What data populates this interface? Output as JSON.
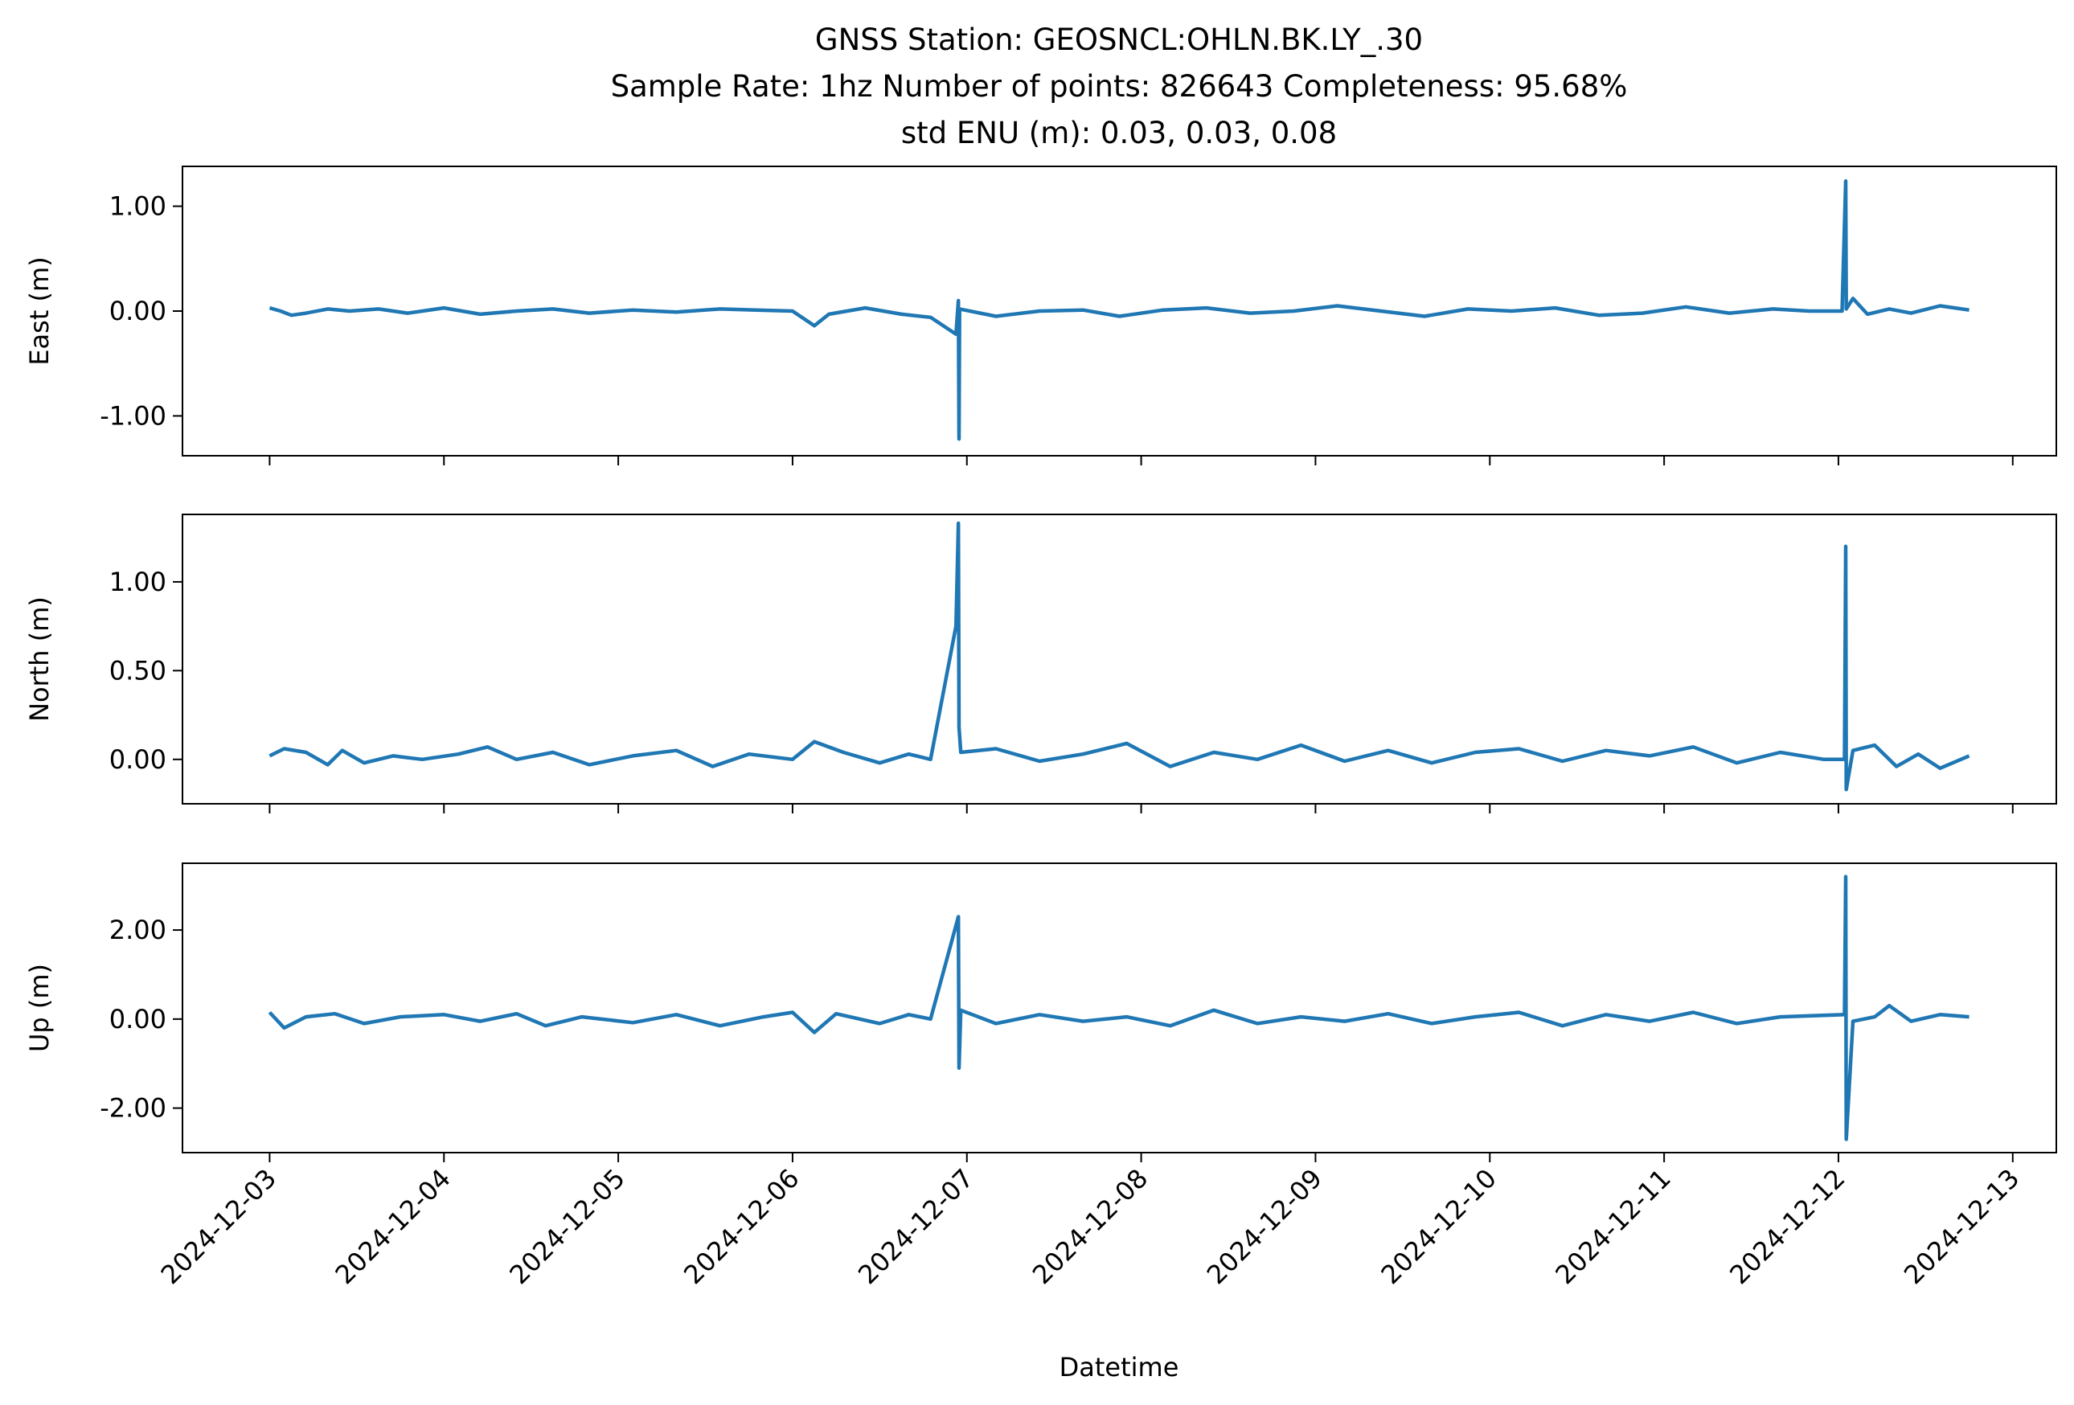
{
  "title_lines": [
    "GNSS Station: GEOSNCL:OHLN.BK.LY_.30",
    "Sample Rate: 1hz   Number of points: 826643    Completeness:  95.68%",
    "std ENU (m):  0.03, 0.03, 0.08"
  ],
  "colors": {
    "series": "#1f77b4",
    "axes": "#000000",
    "background": "#ffffff"
  },
  "chart_data": {
    "type": "line",
    "xlabel": "Datetime",
    "x_ticks": [
      "2024-12-03",
      "2024-12-04",
      "2024-12-05",
      "2024-12-06",
      "2024-12-07",
      "2024-12-08",
      "2024-12-09",
      "2024-12-10",
      "2024-12-11",
      "2024-12-12",
      "2024-12-13"
    ],
    "xlim": [
      "2024-12-02T12:00",
      "2024-12-13T06:00"
    ],
    "grid": false,
    "legend": "none",
    "panels": [
      {
        "ylabel": "East (m)",
        "ylim": [
          -1.38,
          1.38
        ],
        "yticks": [
          -1.0,
          0.0,
          1.0
        ],
        "ytick_labels": [
          "-1.00",
          "0.00",
          "1.00"
        ],
        "points": [
          [
            "2024-12-03T00:00",
            0.03
          ],
          [
            "2024-12-03T01:30",
            0.0
          ],
          [
            "2024-12-03T03:00",
            -0.04
          ],
          [
            "2024-12-03T05:00",
            -0.02
          ],
          [
            "2024-12-03T08:00",
            0.02
          ],
          [
            "2024-12-03T11:00",
            0.0
          ],
          [
            "2024-12-03T15:00",
            0.02
          ],
          [
            "2024-12-03T19:00",
            -0.02
          ],
          [
            "2024-12-04T00:00",
            0.03
          ],
          [
            "2024-12-04T05:00",
            -0.03
          ],
          [
            "2024-12-04T10:00",
            0.0
          ],
          [
            "2024-12-04T15:00",
            0.02
          ],
          [
            "2024-12-04T20:00",
            -0.02
          ],
          [
            "2024-12-05T02:00",
            0.01
          ],
          [
            "2024-12-05T08:00",
            -0.01
          ],
          [
            "2024-12-05T14:00",
            0.02
          ],
          [
            "2024-12-05T19:00",
            0.01
          ],
          [
            "2024-12-06T00:00",
            0.0
          ],
          [
            "2024-12-06T03:00",
            -0.14
          ],
          [
            "2024-12-06T05:00",
            -0.03
          ],
          [
            "2024-12-06T10:00",
            0.03
          ],
          [
            "2024-12-06T15:00",
            -0.03
          ],
          [
            "2024-12-06T19:00",
            -0.06
          ],
          [
            "2024-12-06T22:30",
            -0.22
          ],
          [
            "2024-12-06T22:50",
            0.1
          ],
          [
            "2024-12-06T22:55",
            -1.22
          ],
          [
            "2024-12-06T23:00",
            0.02
          ],
          [
            "2024-12-07T04:00",
            -0.05
          ],
          [
            "2024-12-07T10:00",
            0.0
          ],
          [
            "2024-12-07T16:00",
            0.01
          ],
          [
            "2024-12-07T21:00",
            -0.05
          ],
          [
            "2024-12-08T03:00",
            0.01
          ],
          [
            "2024-12-08T09:00",
            0.03
          ],
          [
            "2024-12-08T15:00",
            -0.02
          ],
          [
            "2024-12-08T21:00",
            0.0
          ],
          [
            "2024-12-09T03:00",
            0.05
          ],
          [
            "2024-12-09T09:00",
            0.0
          ],
          [
            "2024-12-09T15:00",
            -0.05
          ],
          [
            "2024-12-09T21:00",
            0.02
          ],
          [
            "2024-12-10T03:00",
            0.0
          ],
          [
            "2024-12-10T09:00",
            0.03
          ],
          [
            "2024-12-10T15:00",
            -0.04
          ],
          [
            "2024-12-10T21:00",
            -0.02
          ],
          [
            "2024-12-11T03:00",
            0.04
          ],
          [
            "2024-12-11T09:00",
            -0.02
          ],
          [
            "2024-12-11T15:00",
            0.02
          ],
          [
            "2024-12-11T20:00",
            0.0
          ],
          [
            "2024-12-12T00:30",
            0.0
          ],
          [
            "2024-12-12T01:00",
            1.24
          ],
          [
            "2024-12-12T01:05",
            0.02
          ],
          [
            "2024-12-12T02:00",
            0.12
          ],
          [
            "2024-12-12T04:00",
            -0.03
          ],
          [
            "2024-12-12T07:00",
            0.02
          ],
          [
            "2024-12-12T10:00",
            -0.02
          ],
          [
            "2024-12-12T14:00",
            0.05
          ],
          [
            "2024-12-12T18:00",
            0.01
          ]
        ]
      },
      {
        "ylabel": "North (m)",
        "ylim": [
          -0.25,
          1.38
        ],
        "yticks": [
          0.0,
          0.5,
          1.0
        ],
        "ytick_labels": [
          "0.00",
          "0.50",
          "1.00"
        ],
        "points": [
          [
            "2024-12-03T00:00",
            0.02
          ],
          [
            "2024-12-03T02:00",
            0.06
          ],
          [
            "2024-12-03T05:00",
            0.04
          ],
          [
            "2024-12-03T08:00",
            -0.03
          ],
          [
            "2024-12-03T10:00",
            0.05
          ],
          [
            "2024-12-03T13:00",
            -0.02
          ],
          [
            "2024-12-03T17:00",
            0.02
          ],
          [
            "2024-12-03T21:00",
            0.0
          ],
          [
            "2024-12-04T02:00",
            0.03
          ],
          [
            "2024-12-04T06:00",
            0.07
          ],
          [
            "2024-12-04T10:00",
            0.0
          ],
          [
            "2024-12-04T15:00",
            0.04
          ],
          [
            "2024-12-04T20:00",
            -0.03
          ],
          [
            "2024-12-05T02:00",
            0.02
          ],
          [
            "2024-12-05T08:00",
            0.05
          ],
          [
            "2024-12-05T13:00",
            -0.04
          ],
          [
            "2024-12-05T18:00",
            0.03
          ],
          [
            "2024-12-06T00:00",
            0.0
          ],
          [
            "2024-12-06T03:00",
            0.1
          ],
          [
            "2024-12-06T07:00",
            0.04
          ],
          [
            "2024-12-06T12:00",
            -0.02
          ],
          [
            "2024-12-06T16:00",
            0.03
          ],
          [
            "2024-12-06T19:00",
            0.0
          ],
          [
            "2024-12-06T22:30",
            0.75
          ],
          [
            "2024-12-06T22:50",
            1.33
          ],
          [
            "2024-12-06T22:55",
            0.18
          ],
          [
            "2024-12-06T23:10",
            0.04
          ],
          [
            "2024-12-07T04:00",
            0.06
          ],
          [
            "2024-12-07T10:00",
            -0.01
          ],
          [
            "2024-12-07T16:00",
            0.03
          ],
          [
            "2024-12-07T22:00",
            0.09
          ],
          [
            "2024-12-08T04:00",
            -0.04
          ],
          [
            "2024-12-08T10:00",
            0.04
          ],
          [
            "2024-12-08T16:00",
            0.0
          ],
          [
            "2024-12-08T22:00",
            0.08
          ],
          [
            "2024-12-09T04:00",
            -0.01
          ],
          [
            "2024-12-09T10:00",
            0.05
          ],
          [
            "2024-12-09T16:00",
            -0.02
          ],
          [
            "2024-12-09T22:00",
            0.04
          ],
          [
            "2024-12-10T04:00",
            0.06
          ],
          [
            "2024-12-10T10:00",
            -0.01
          ],
          [
            "2024-12-10T16:00",
            0.05
          ],
          [
            "2024-12-10T22:00",
            0.02
          ],
          [
            "2024-12-11T04:00",
            0.07
          ],
          [
            "2024-12-11T10:00",
            -0.02
          ],
          [
            "2024-12-11T16:00",
            0.04
          ],
          [
            "2024-12-11T22:00",
            0.0
          ],
          [
            "2024-12-12T00:50",
            0.0
          ],
          [
            "2024-12-12T01:00",
            1.2
          ],
          [
            "2024-12-12T01:05",
            -0.17
          ],
          [
            "2024-12-12T02:00",
            0.05
          ],
          [
            "2024-12-12T05:00",
            0.08
          ],
          [
            "2024-12-12T08:00",
            -0.04
          ],
          [
            "2024-12-12T11:00",
            0.03
          ],
          [
            "2024-12-12T14:00",
            -0.05
          ],
          [
            "2024-12-12T18:00",
            0.02
          ]
        ]
      },
      {
        "ylabel": "Up (m)",
        "ylim": [
          -3.0,
          3.5
        ],
        "yticks": [
          -2.0,
          0.0,
          2.0
        ],
        "ytick_labels": [
          "-2.00",
          "0.00",
          "2.00"
        ],
        "points": [
          [
            "2024-12-03T00:00",
            0.15
          ],
          [
            "2024-12-03T02:00",
            -0.2
          ],
          [
            "2024-12-03T05:00",
            0.05
          ],
          [
            "2024-12-03T09:00",
            0.12
          ],
          [
            "2024-12-03T13:00",
            -0.1
          ],
          [
            "2024-12-03T18:00",
            0.05
          ],
          [
            "2024-12-04T00:00",
            0.1
          ],
          [
            "2024-12-04T05:00",
            -0.05
          ],
          [
            "2024-12-04T10:00",
            0.12
          ],
          [
            "2024-12-04T14:00",
            -0.15
          ],
          [
            "2024-12-04T19:00",
            0.05
          ],
          [
            "2024-12-05T02:00",
            -0.08
          ],
          [
            "2024-12-05T08:00",
            0.1
          ],
          [
            "2024-12-05T14:00",
            -0.15
          ],
          [
            "2024-12-05T20:00",
            0.05
          ],
          [
            "2024-12-06T00:00",
            0.15
          ],
          [
            "2024-12-06T03:00",
            -0.3
          ],
          [
            "2024-12-06T06:00",
            0.12
          ],
          [
            "2024-12-06T12:00",
            -0.1
          ],
          [
            "2024-12-06T16:00",
            0.1
          ],
          [
            "2024-12-06T19:00",
            0.0
          ],
          [
            "2024-12-06T22:50",
            2.3
          ],
          [
            "2024-12-06T22:55",
            -1.1
          ],
          [
            "2024-12-06T23:10",
            0.2
          ],
          [
            "2024-12-07T04:00",
            -0.1
          ],
          [
            "2024-12-07T10:00",
            0.1
          ],
          [
            "2024-12-07T16:00",
            -0.05
          ],
          [
            "2024-12-07T22:00",
            0.05
          ],
          [
            "2024-12-08T04:00",
            -0.15
          ],
          [
            "2024-12-08T10:00",
            0.2
          ],
          [
            "2024-12-08T16:00",
            -0.1
          ],
          [
            "2024-12-08T22:00",
            0.05
          ],
          [
            "2024-12-09T04:00",
            -0.05
          ],
          [
            "2024-12-09T10:00",
            0.12
          ],
          [
            "2024-12-09T16:00",
            -0.1
          ],
          [
            "2024-12-09T22:00",
            0.05
          ],
          [
            "2024-12-10T04:00",
            0.15
          ],
          [
            "2024-12-10T10:00",
            -0.15
          ],
          [
            "2024-12-10T16:00",
            0.1
          ],
          [
            "2024-12-10T22:00",
            -0.05
          ],
          [
            "2024-12-11T04:00",
            0.15
          ],
          [
            "2024-12-11T10:00",
            -0.1
          ],
          [
            "2024-12-11T16:00",
            0.05
          ],
          [
            "2024-12-12T00:50",
            0.1
          ],
          [
            "2024-12-12T01:00",
            3.2
          ],
          [
            "2024-12-12T01:05",
            -2.7
          ],
          [
            "2024-12-12T02:00",
            -0.05
          ],
          [
            "2024-12-12T05:00",
            0.05
          ],
          [
            "2024-12-12T07:00",
            0.3
          ],
          [
            "2024-12-12T10:00",
            -0.05
          ],
          [
            "2024-12-12T14:00",
            0.1
          ],
          [
            "2024-12-12T18:00",
            0.05
          ]
        ]
      }
    ]
  }
}
